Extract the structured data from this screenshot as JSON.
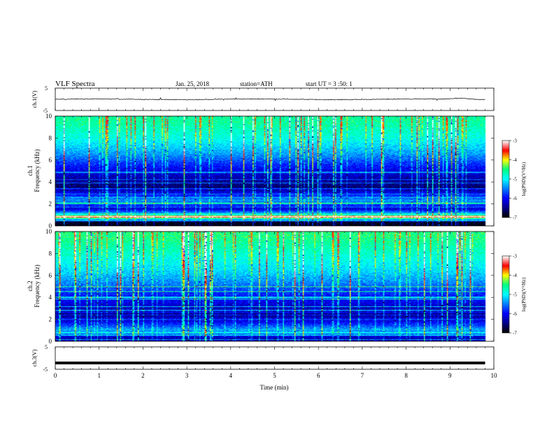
{
  "header": {
    "title": "VLF  Spectra",
    "date": "Jan. 25, 2018",
    "station": "station=ATH",
    "start": "start  UT =   3  :50: 1"
  },
  "colormap": {
    "stops": [
      "#000000",
      "#00008b",
      "#0000ff",
      "#0080ff",
      "#00ffff",
      "#00ff80",
      "#ffff00",
      "#ff0000",
      "#ffffff"
    ]
  },
  "chart_data": [
    {
      "type": "line",
      "panel": "ch1",
      "ylabel": "ch.1(V)",
      "ylim": [
        -5,
        5
      ],
      "yticks": [
        "5",
        "-5"
      ],
      "xlim": [
        0,
        10
      ],
      "series": [
        {
          "values_summary": "noisy signal near 0 V, amplitude about ±0.5 V, rising to ~+0.5 V near 9.3 min"
        }
      ],
      "color": "#000000"
    },
    {
      "type": "heatmap",
      "panel": "ch1-spectrogram",
      "ylabel_lines": [
        "ch.1",
        "Frequency  (kHz)"
      ],
      "ylim": [
        0,
        10
      ],
      "yticks": [
        "0",
        "2",
        "4",
        "6",
        "8",
        "10"
      ],
      "xlim": [
        0,
        10
      ],
      "colorbar": {
        "label": "log(PSD)(V²/Hz)",
        "range": [
          -7,
          -3
        ],
        "ticks": [
          "-3",
          "-4",
          "-5",
          "-6",
          "-7"
        ]
      },
      "profile_log_psd": [
        {
          "freq_khz": 0.3,
          "value": -6.9
        },
        {
          "freq_khz": 0.7,
          "value": -4.3
        },
        {
          "freq_khz": 1.5,
          "value": -6.2
        },
        {
          "freq_khz": 2.3,
          "value": -5.4
        },
        {
          "freq_khz": 3.5,
          "value": -6.6
        },
        {
          "freq_khz": 4.5,
          "value": -6.3
        },
        {
          "freq_khz": 5.5,
          "value": -5.9
        },
        {
          "freq_khz": 6.5,
          "value": -5.4
        },
        {
          "freq_khz": 8.0,
          "value": -4.9
        },
        {
          "freq_khz": 9.5,
          "value": -4.6
        }
      ]
    },
    {
      "type": "heatmap",
      "panel": "ch2-spectrogram",
      "ylabel_lines": [
        "ch.2",
        "Frequency  (kHz)"
      ],
      "ylim": [
        0,
        10
      ],
      "yticks": [
        "0",
        "2",
        "4",
        "6",
        "8",
        "10"
      ],
      "xlim": [
        0,
        10
      ],
      "colorbar": {
        "label": "log(PSD)(V²/Hz)",
        "range": [
          -7,
          -3
        ],
        "ticks": [
          "-3",
          "-4",
          "-5",
          "-6",
          "-7"
        ]
      },
      "profile_log_psd": [
        {
          "freq_khz": 0.3,
          "value": -6.3
        },
        {
          "freq_khz": 1.0,
          "value": -5.3
        },
        {
          "freq_khz": 1.8,
          "value": -6.1
        },
        {
          "freq_khz": 2.5,
          "value": -6.5
        },
        {
          "freq_khz": 3.5,
          "value": -6.1
        },
        {
          "freq_khz": 4.5,
          "value": -5.8
        },
        {
          "freq_khz": 5.5,
          "value": -5.4
        },
        {
          "freq_khz": 6.5,
          "value": -5.1
        },
        {
          "freq_khz": 8.0,
          "value": -4.8
        },
        {
          "freq_khz": 9.5,
          "value": -4.5
        }
      ]
    },
    {
      "type": "line",
      "panel": "ch3",
      "ylabel": "ch.3(V)",
      "ylim": [
        -5,
        5
      ],
      "yticks": [
        "5",
        "-5"
      ],
      "xlim": [
        0,
        10
      ],
      "xlabel": "Time  (min)",
      "xticks": [
        "0",
        "1",
        "2",
        "3",
        "4",
        "5",
        "6",
        "7",
        "8",
        "9",
        "10"
      ],
      "series": [
        {
          "values": [
            [
              0,
              -2.2
            ],
            [
              9.8,
              -2.2
            ]
          ]
        }
      ],
      "color": "#000000"
    }
  ]
}
